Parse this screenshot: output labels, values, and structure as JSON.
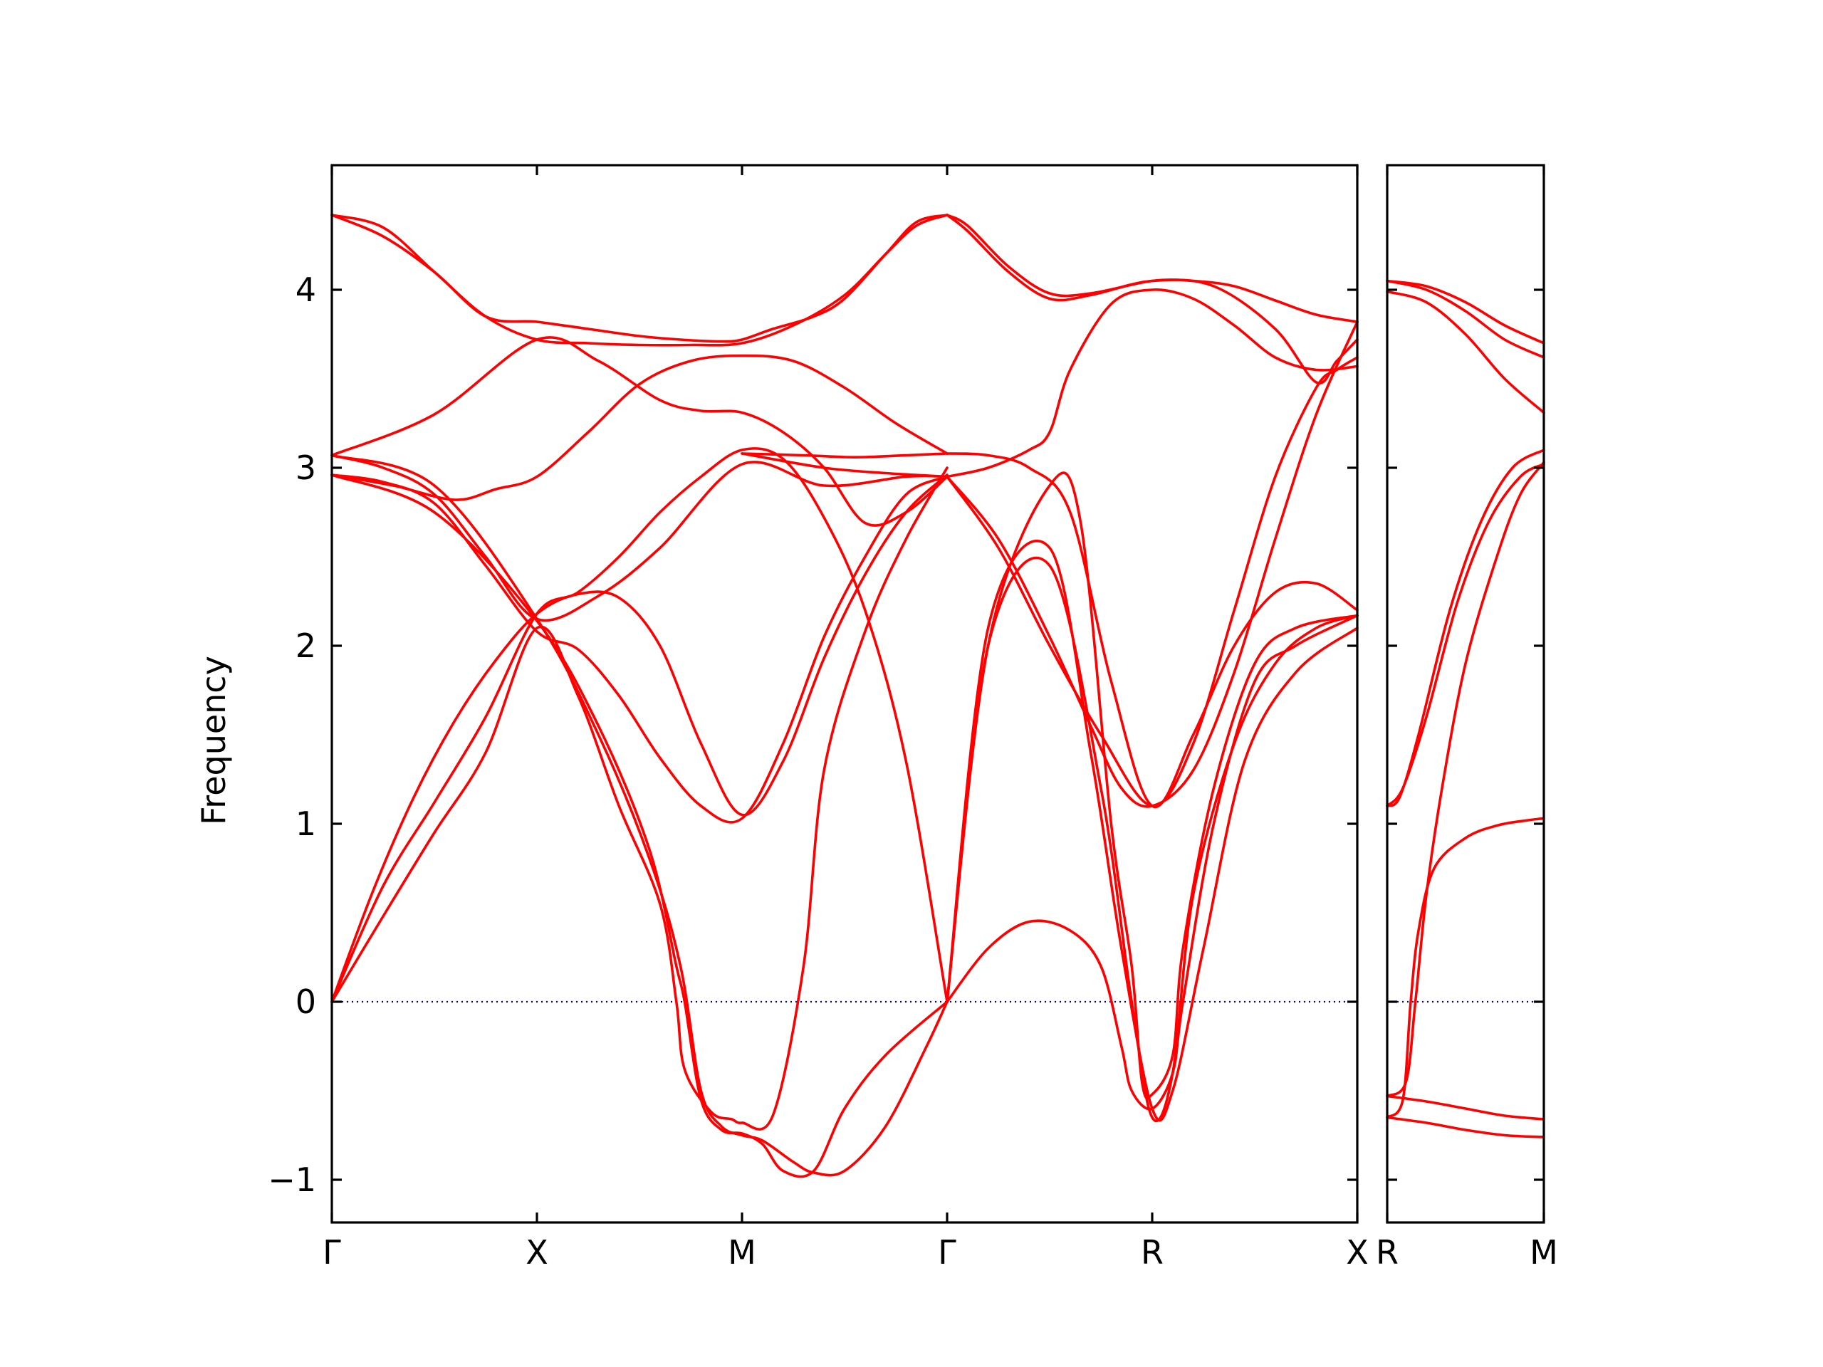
{
  "chart_data": {
    "type": "line",
    "ylabel": "Frequency",
    "ylim": [
      -1.24,
      4.7
    ],
    "yticks": [
      -1,
      0,
      1,
      2,
      3,
      4
    ],
    "ytick_labels": [
      "−1",
      "0",
      "1",
      "2",
      "3",
      "4"
    ],
    "zero_line": 0,
    "colors": {
      "bands": "#ff0000",
      "zero_line": "#00008b",
      "axes": "#000000"
    },
    "panels": [
      {
        "name": "main",
        "path": [
          "Γ",
          "X",
          "M",
          "Γ",
          "R",
          "X"
        ],
        "xticks": [
          0,
          1,
          2,
          3,
          4,
          5
        ],
        "xlim": [
          0,
          5
        ],
        "xtick_labels": [
          "Γ",
          "X",
          "M",
          "Γ",
          "R",
          "X"
        ],
        "bands": [
          {
            "x": [
              0,
              0.25,
              0.5,
              0.75,
              1,
              1.25,
              1.5,
              1.7,
              1.9,
              2,
              2.15,
              2.35,
              2.5,
              2.7,
              2.85,
              3
            ],
            "y": [
              4.42,
              4.3,
              4.1,
              3.85,
              3.82,
              3.78,
              3.74,
              3.72,
              3.71,
              3.72,
              3.78,
              3.85,
              3.95,
              4.2,
              4.38,
              4.42
            ]
          },
          {
            "x": [
              0,
              0.25,
              0.5,
              0.75,
              1,
              1.25,
              1.5,
              1.75,
              2,
              2.25,
              2.5,
              2.7,
              2.85,
              3
            ],
            "y": [
              4.42,
              4.35,
              4.1,
              3.85,
              3.72,
              3.7,
              3.69,
              3.69,
              3.7,
              3.8,
              3.97,
              4.2,
              4.36,
              4.42
            ]
          },
          {
            "x": [
              0,
              0.5,
              1,
              1.3,
              1.6,
              1.8,
              2,
              2.2,
              2.4,
              2.6,
              2.8,
              3
            ],
            "y": [
              3.07,
              3.3,
              3.72,
              3.6,
              3.38,
              3.32,
              3.31,
              3.2,
              3.0,
              2.69,
              2.75,
              2.95
            ]
          },
          {
            "x": [
              0,
              0.3,
              0.6,
              0.8,
              1,
              1.25,
              1.5,
              1.75,
              2,
              2.25,
              2.5,
              2.75,
              3
            ],
            "y": [
              2.96,
              2.9,
              2.82,
              2.88,
              2.95,
              3.2,
              3.47,
              3.6,
              3.63,
              3.6,
              3.45,
              3.25,
              3.08
            ]
          },
          {
            "x": [
              0,
              0.25,
              0.5,
              0.75,
              1,
              1.3,
              1.6,
              2,
              2.4,
              2.8,
              3
            ],
            "y": [
              3.07,
              3.0,
              2.85,
              2.5,
              2.15,
              2.28,
              2.55,
              3.02,
              2.9,
              2.95,
              2.95
            ]
          },
          {
            "x": [
              0,
              0.25,
              0.5,
              0.75,
              1,
              1.2,
              1.4,
              1.6,
              1.8,
              2,
              2.2,
              2.4,
              2.6,
              2.8,
              3
            ],
            "y": [
              2.96,
              2.92,
              2.8,
              2.45,
              2.08,
              1.98,
              1.72,
              1.37,
              1.1,
              1.03,
              1.45,
              2.05,
              2.5,
              2.85,
              2.95
            ]
          },
          {
            "x": [
              0,
              0.2,
              0.4,
              0.6,
              0.8,
              1,
              1.2,
              1.4,
              1.6,
              1.8,
              2,
              2.2,
              2.4,
              2.6,
              2.8,
              3
            ],
            "y": [
              0,
              0.62,
              1.15,
              1.58,
              1.92,
              2.18,
              2.29,
              2.27,
              2.0,
              1.45,
              1.05,
              1.35,
              1.93,
              2.4,
              2.75,
              2.96
            ]
          },
          {
            "x": [
              0,
              0.25,
              0.5,
              0.75,
              1,
              1.2,
              1.4,
              1.6,
              1.8,
              2,
              2.2,
              2.4,
              2.6,
              2.8,
              3
            ],
            "y": [
              0,
              0.65,
              1.12,
              1.6,
              2.18,
              2.3,
              2.5,
              2.75,
              2.95,
              3.1,
              3.05,
              2.72,
              2.2,
              1.35,
              0
            ]
          },
          {
            "x": [
              0,
              0.25,
              0.5,
              0.75,
              1,
              1.2,
              1.4,
              1.6,
              1.68,
              1.72,
              1.85,
              1.95,
              2,
              2.15,
              2.3,
              2.4,
              2.6,
              2.8,
              3
            ],
            "y": [
              0,
              0.48,
              0.95,
              1.4,
              2.1,
              1.72,
              1.1,
              0.55,
              0,
              -0.38,
              -0.62,
              -0.66,
              -0.68,
              -0.64,
              0.2,
              1.3,
              2.08,
              2.6,
              3.0
            ]
          },
          {
            "x": [
              0,
              0.5,
              1,
              1.3,
              1.55,
              1.7,
              1.8,
              1.9,
              2,
              2.1,
              2.25,
              2.35,
              2.5,
              2.7,
              2.9,
              3
            ],
            "y": [
              3.07,
              2.9,
              2.15,
              1.5,
              0.8,
              0.2,
              -0.5,
              -0.7,
              -0.75,
              -0.78,
              -0.9,
              -0.96,
              -0.95,
              -0.7,
              -0.25,
              0
            ]
          },
          {
            "x": [
              0,
              0.5,
              1,
              1.3,
              1.55,
              1.68,
              1.72,
              1.8,
              1.9,
              2,
              2.1,
              2.2,
              2.35,
              2.5,
              2.7,
              3
            ],
            "y": [
              2.96,
              2.75,
              2.14,
              1.55,
              0.85,
              0.2,
              0,
              -0.55,
              -0.72,
              -0.74,
              -0.8,
              -0.95,
              -0.95,
              -0.6,
              -0.3,
              0
            ]
          },
          {
            "x": [
              2,
              2.3,
              2.5,
              2.6,
              2.8,
              3
            ],
            "y": [
              3.08,
              3.07,
              3.06,
              3.06,
              3.07,
              3.08
            ]
          },
          {
            "x": [
              2,
              2.4,
              2.7,
              3
            ],
            "y": [
              3.08,
              3.0,
              2.97,
              2.95
            ]
          },
          {
            "x": [
              3,
              3.1,
              3.3,
              3.5,
              3.7,
              4,
              4.2,
              4.4,
              4.6,
              4.8,
              5
            ],
            "y": [
              4.42,
              4.36,
              4.13,
              3.98,
              3.98,
              4.05,
              4.05,
              4.02,
              3.94,
              3.86,
              3.82
            ]
          },
          {
            "x": [
              3,
              3.1,
              3.3,
              3.5,
              3.7,
              4,
              4.3,
              4.6,
              4.8,
              4.9,
              5
            ],
            "y": [
              4.42,
              4.33,
              4.1,
              3.95,
              3.97,
              4.05,
              4.02,
              3.78,
              3.48,
              3.6,
              3.72
            ]
          },
          {
            "x": [
              3,
              3.2,
              3.4,
              3.5,
              3.6,
              3.8,
              4,
              4.2,
              4.4,
              4.6,
              4.8,
              5
            ],
            "y": [
              2.95,
              3.0,
              3.1,
              3.2,
              3.55,
              3.92,
              4.0,
              3.95,
              3.8,
              3.62,
              3.55,
              3.57
            ]
          },
          {
            "x": [
              3,
              3.2,
              3.4,
              3.6,
              3.8,
              4,
              4.2,
              4.4,
              4.6,
              4.8,
              5
            ],
            "y": [
              3.08,
              3.07,
              3.0,
              2.75,
              1.8,
              1.1,
              1.5,
              2.0,
              2.3,
              2.35,
              2.2
            ]
          },
          {
            "x": [
              3,
              3.25,
              3.5,
              3.7,
              3.85,
              4,
              4.2,
              4.4,
              4.6,
              4.8,
              5
            ],
            "y": [
              2.95,
              2.6,
              2.05,
              1.55,
              1.2,
              1.1,
              1.3,
              1.85,
              2.6,
              3.3,
              3.82
            ]
          },
          {
            "x": [
              3,
              3.25,
              3.5,
              3.75,
              4,
              4.2,
              4.4,
              4.6,
              4.8,
              4.9,
              5
            ],
            "y": [
              2.95,
              2.55,
              2.0,
              1.5,
              1.1,
              1.45,
              2.2,
              2.95,
              3.45,
              3.55,
              3.62
            ]
          },
          {
            "x": [
              3,
              3.2,
              3.4,
              3.6,
              3.75,
              3.85,
              3.9,
              4,
              4.1,
              4.15,
              4.3,
              4.5,
              4.7,
              5
            ],
            "y": [
              0,
              0.3,
              0.45,
              0.4,
              0.2,
              -0.25,
              -0.5,
              -0.6,
              -0.4,
              0,
              1.0,
              1.8,
              2.0,
              2.17
            ]
          },
          {
            "x": [
              3,
              3.2,
              3.5,
              3.65,
              3.8,
              3.9,
              3.95,
              4,
              4.1,
              4.15,
              4.3,
              4.5,
              4.7,
              5
            ],
            "y": [
              0,
              2.0,
              2.9,
              2.7,
              1.0,
              0.2,
              -0.45,
              -0.52,
              -0.3,
              0.3,
              1.2,
              1.9,
              2.1,
              2.17
            ]
          },
          {
            "x": [
              3,
              3.2,
              3.5,
              3.75,
              3.9,
              4,
              4.1,
              4.2,
              4.4,
              4.6,
              4.8,
              5
            ],
            "y": [
              0,
              2.0,
              2.45,
              1.2,
              0,
              -0.65,
              -0.4,
              0.6,
              1.45,
              1.9,
              2.1,
              2.17
            ]
          },
          {
            "x": [
              3,
              3.2,
              3.5,
              3.7,
              3.85,
              4,
              4.1,
              4.25,
              4.45,
              4.7,
              5
            ],
            "y": [
              0,
              2.1,
              2.55,
              1.4,
              0.3,
              -0.6,
              -0.5,
              0.3,
              1.35,
              1.85,
              2.1
            ]
          }
        ]
      },
      {
        "name": "side",
        "path": [
          "R",
          "M"
        ],
        "xticks": [
          0,
          1
        ],
        "xlim": [
          0,
          1
        ],
        "xtick_labels": [
          "R",
          "M"
        ],
        "bands": [
          {
            "x": [
              0,
              0.25,
              0.5,
              0.75,
              1
            ],
            "y": [
              4.05,
              4.02,
              3.93,
              3.8,
              3.7
            ]
          },
          {
            "x": [
              0,
              0.25,
              0.5,
              0.75,
              1
            ],
            "y": [
              4.05,
              4.0,
              3.88,
              3.72,
              3.62
            ]
          },
          {
            "x": [
              0,
              0.25,
              0.5,
              0.75,
              1
            ],
            "y": [
              3.99,
              3.93,
              3.75,
              3.5,
              3.31
            ]
          },
          {
            "x": [
              0,
              0.08,
              0.2,
              0.4,
              0.6,
              0.8,
              1
            ],
            "y": [
              1.1,
              1.15,
              1.5,
              2.2,
              2.7,
              3.0,
              3.1
            ]
          },
          {
            "x": [
              0,
              0.1,
              0.25,
              0.45,
              0.65,
              0.85,
              1
            ],
            "y": [
              1.1,
              1.2,
              1.6,
              2.25,
              2.7,
              2.95,
              3.02
            ]
          },
          {
            "x": [
              0,
              0.1,
              0.15,
              0.2,
              0.3,
              0.5,
              0.7,
              0.9,
              1
            ],
            "y": [
              -0.65,
              -0.55,
              0,
              0.4,
              0.75,
              0.92,
              0.99,
              1.02,
              1.03
            ]
          },
          {
            "x": [
              0,
              0.12,
              0.18,
              0.25,
              0.35,
              0.5,
              0.7,
              0.85,
              1
            ],
            "y": [
              -0.53,
              -0.45,
              0,
              0.6,
              1.2,
              1.9,
              2.5,
              2.85,
              3.03
            ]
          },
          {
            "x": [
              0,
              0.25,
              0.5,
              0.75,
              1
            ],
            "y": [
              -0.53,
              -0.56,
              -0.6,
              -0.64,
              -0.66
            ]
          },
          {
            "x": [
              0,
              0.25,
              0.5,
              0.75,
              1
            ],
            "y": [
              -0.65,
              -0.68,
              -0.72,
              -0.75,
              -0.76
            ]
          }
        ]
      }
    ]
  }
}
